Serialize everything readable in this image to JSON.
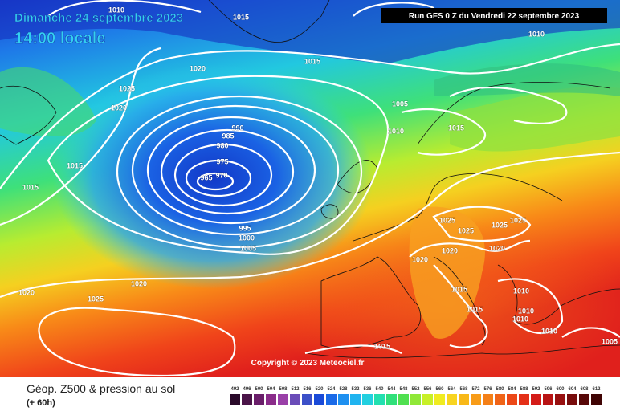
{
  "header": {
    "date": "Dimanche 24 septembre 2023",
    "time": "14:00 locale",
    "run": "Run GFS 0 Z du Vendredi 22 septembre 2023"
  },
  "isobar_labels": [
    "1010",
    "1015",
    "1020",
    "1025",
    "1020",
    "1015",
    "1015",
    "1015",
    "1005",
    "1010",
    "1015",
    "990",
    "985",
    "980",
    "975",
    "970",
    "965",
    "995",
    "1000",
    "1005",
    "1020",
    "1025",
    "1020",
    "1010",
    "1025",
    "1025",
    "1025",
    "1025",
    "1020",
    "1020",
    "1020",
    "1015",
    "1015",
    "1010",
    "1010",
    "1010",
    "1010",
    "1015",
    "1005"
  ],
  "copyright": "Copyright © 2023 Meteociel.fr",
  "legend": {
    "title": "Géop. Z500 & pression au sol",
    "subtitle": "(+ 60h)",
    "scale": [
      492,
      496,
      500,
      504,
      508,
      512,
      516,
      520,
      524,
      528,
      532,
      536,
      540,
      544,
      548,
      552,
      556,
      560,
      564,
      568,
      572,
      576,
      580,
      584,
      588,
      592,
      596,
      600,
      604,
      608,
      612
    ]
  }
}
